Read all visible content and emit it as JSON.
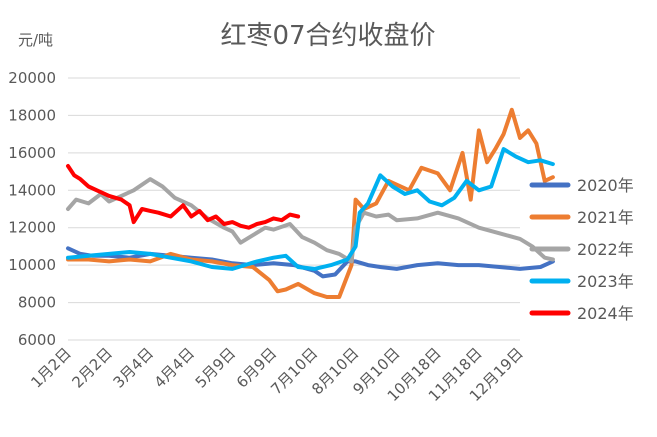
{
  "chart_data": {
    "type": "line",
    "title": "红枣07合约收盘价",
    "ylabel": "元/吨",
    "xlabel": "",
    "ylim": [
      6000,
      20000
    ],
    "yticks": [
      6000,
      8000,
      10000,
      12000,
      14000,
      16000,
      18000,
      20000
    ],
    "grid": true,
    "legend": "right",
    "categories": [
      "1月2日",
      "2月2日",
      "3月4日",
      "4月4日",
      "5月9日",
      "6月9日",
      "7月10日",
      "8月10日",
      "9月10日",
      "10月18日",
      "11月18日",
      "12月19日"
    ],
    "series": [
      {
        "name": "2020年",
        "color": "#4472c4",
        "x": [
          0,
          0.3,
          0.6,
          1.0,
          1.5,
          2.0,
          2.5,
          3.0,
          3.5,
          4.0,
          4.5,
          5.0,
          5.5,
          6.0,
          6.2,
          6.5,
          6.8,
          7.0,
          7.3,
          7.6,
          8.0,
          8.5,
          9.0,
          9.5,
          10.0,
          10.5,
          11.0,
          11.5,
          11.8
        ],
        "values": [
          10900,
          10600,
          10500,
          10500,
          10400,
          10600,
          10500,
          10400,
          10300,
          10100,
          10000,
          10100,
          10000,
          9700,
          9400,
          9500,
          10200,
          10200,
          10000,
          9900,
          9800,
          10000,
          10100,
          10000,
          10000,
          9900,
          9800,
          9900,
          10200
        ]
      },
      {
        "name": "2021年",
        "color": "#ed7d31",
        "x": [
          0,
          0.5,
          1.0,
          1.5,
          2.0,
          2.5,
          3.0,
          3.5,
          4.0,
          4.5,
          4.9,
          5.1,
          5.3,
          5.6,
          6.0,
          6.3,
          6.6,
          6.9,
          7.0,
          7.2,
          7.5,
          7.8,
          8.0,
          8.3,
          8.6,
          9.0,
          9.3,
          9.6,
          9.8,
          10.0,
          10.2,
          10.4,
          10.6,
          10.8,
          11.0,
          11.2,
          11.4,
          11.6,
          11.8
        ],
        "values": [
          10300,
          10300,
          10200,
          10300,
          10200,
          10600,
          10300,
          10200,
          10000,
          9900,
          9200,
          8600,
          8700,
          9000,
          8500,
          8300,
          8300,
          10000,
          13500,
          13000,
          13300,
          14500,
          14300,
          14000,
          15200,
          14900,
          14000,
          16000,
          13500,
          17200,
          15500,
          16200,
          17000,
          18300,
          16800,
          17200,
          16500,
          14500,
          14700
        ]
      },
      {
        "name": "2022年",
        "color": "#a5a5a5",
        "x": [
          0,
          0.2,
          0.5,
          0.8,
          1.0,
          1.3,
          1.6,
          2.0,
          2.3,
          2.6,
          3.0,
          3.4,
          3.8,
          4.0,
          4.2,
          4.5,
          4.8,
          5.0,
          5.4,
          5.7,
          6.0,
          6.3,
          6.6,
          6.9,
          7.0,
          7.2,
          7.5,
          7.8,
          8.0,
          8.5,
          9.0,
          9.5,
          10.0,
          10.5,
          11.0,
          11.3,
          11.6,
          11.8
        ],
        "values": [
          13000,
          13500,
          13300,
          13800,
          13400,
          13700,
          14000,
          14600,
          14200,
          13600,
          13200,
          12500,
          12000,
          11800,
          11200,
          11600,
          12000,
          11900,
          12200,
          11500,
          11200,
          10800,
          10600,
          10200,
          12000,
          12800,
          12600,
          12700,
          12400,
          12500,
          12800,
          12500,
          12000,
          11700,
          11400,
          11000,
          10400,
          10300
        ]
      },
      {
        "name": "2023年",
        "color": "#00b0f0",
        "x": [
          0,
          0.5,
          1.0,
          1.5,
          2.0,
          2.5,
          3.0,
          3.5,
          4.0,
          4.3,
          4.6,
          5.0,
          5.3,
          5.6,
          6.0,
          6.4,
          6.8,
          7.0,
          7.1,
          7.3,
          7.6,
          7.9,
          8.2,
          8.5,
          8.8,
          9.1,
          9.4,
          9.7,
          10.0,
          10.3,
          10.6,
          10.9,
          11.2,
          11.5,
          11.8
        ],
        "values": [
          10400,
          10500,
          10600,
          10700,
          10600,
          10400,
          10200,
          9900,
          9800,
          10000,
          10200,
          10400,
          10500,
          9900,
          9800,
          10000,
          10300,
          11000,
          12800,
          13300,
          14800,
          14200,
          13800,
          14000,
          13400,
          13200,
          13600,
          14500,
          14000,
          14200,
          16200,
          15800,
          15500,
          15600,
          15400
        ]
      },
      {
        "name": "2024年",
        "color": "#ff0000",
        "x": [
          0,
          0.15,
          0.3,
          0.5,
          0.8,
          1.0,
          1.3,
          1.5,
          1.6,
          1.8,
          2.0,
          2.2,
          2.5,
          2.8,
          3.0,
          3.2,
          3.4,
          3.6,
          3.8,
          4.0,
          4.2,
          4.4,
          4.6,
          4.8,
          5.0,
          5.2,
          5.4,
          5.6
        ],
        "values": [
          15300,
          14800,
          14600,
          14200,
          13900,
          13700,
          13500,
          13200,
          12300,
          13000,
          12900,
          12800,
          12600,
          13200,
          12600,
          12900,
          12400,
          12600,
          12200,
          12300,
          12100,
          12000,
          12200,
          12300,
          12500,
          12400,
          12700,
          12600
        ]
      }
    ]
  }
}
